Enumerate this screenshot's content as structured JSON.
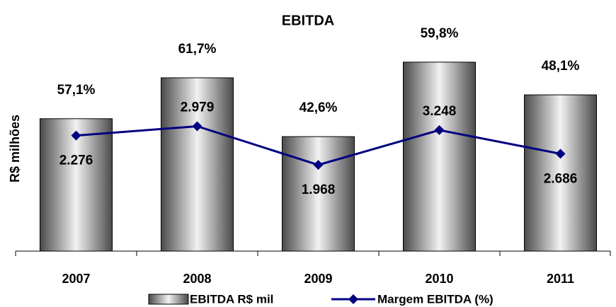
{
  "chart_data": {
    "type": "bar",
    "title": "EBITDA",
    "ylabel": "R$ milhões",
    "categories": [
      "2007",
      "2008",
      "2009",
      "2010",
      "2011"
    ],
    "ylim": [
      0,
      4000
    ],
    "y2lim": [
      0,
      115
    ],
    "series": [
      {
        "name": "EBITDA R$ mil",
        "type": "bar",
        "color": "#7a7a7a",
        "values": [
          2276,
          2979,
          1968,
          3248,
          2686
        ],
        "value_labels": [
          "2.276",
          "2.979",
          "1.968",
          "3.248",
          "2.686"
        ]
      },
      {
        "name": "Margem EBITDA (%)",
        "type": "line",
        "axis": "y2",
        "color": "#000080",
        "values": [
          57.1,
          61.7,
          42.6,
          59.8,
          48.1
        ],
        "value_labels": [
          "57,1%",
          "61,7%",
          "42,6%",
          "59,8%",
          "48,1%"
        ]
      }
    ]
  }
}
